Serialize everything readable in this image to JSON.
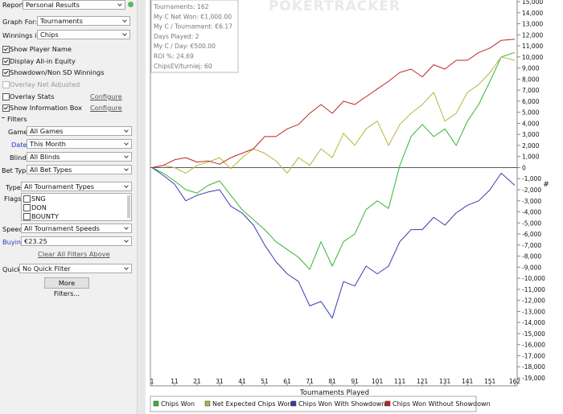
{
  "panel": {
    "report": {
      "label": "Report:",
      "value": "Personal Results"
    },
    "graph_for": {
      "label": "Graph For:",
      "value": "Tournaments"
    },
    "winnings_in": {
      "label": "Winnings in:",
      "value": "Chips"
    },
    "checkboxes": [
      {
        "label": "Show Player Name",
        "checked": true
      },
      {
        "label": "Display All-in Equity",
        "checked": true
      },
      {
        "label": "Showdown/Non SD Winnings",
        "checked": true
      },
      {
        "label": "Overlay Net Adjusted",
        "checked": false
      },
      {
        "label": "Overlay Stats",
        "checked": false,
        "link": "Configure"
      },
      {
        "label": "Show Information Box",
        "checked": true,
        "link": "Configure"
      }
    ],
    "filters_title": "Filters",
    "game": {
      "label": "Game:",
      "value": "All Games"
    },
    "date": {
      "label": "Date:",
      "value": "This Month"
    },
    "blind": {
      "label": "Blind:",
      "value": "All Blinds"
    },
    "bet_type": {
      "label": "Bet Type:",
      "value": "All Bet Types"
    },
    "type": {
      "label": "Type:",
      "value": "All Tournament Types"
    },
    "flags": {
      "label": "Flags:",
      "items": [
        "SNG",
        "DON",
        "BOUNTY"
      ]
    },
    "speed": {
      "label": "Speed:",
      "value": "All Tournament Speeds"
    },
    "buyin": {
      "label": "Buyin:",
      "value": "€23.25"
    },
    "clear_link": "Clear All Filters Above",
    "quick": {
      "label": "Quick:",
      "value": "No Quick Filter"
    },
    "more_button": "More Filters..."
  },
  "chart_data": {
    "type": "line",
    "watermark": "POKERTRACKER",
    "info_box": [
      "Tournaments: 162",
      "My C Net Won: €1,000.00",
      "My C / Tournament: €6.17",
      "Days Played: 2",
      "My C / Day: €500.00",
      "ROI %: 24.69",
      "ChipsEV/turniej: 60"
    ],
    "x_label": "Tournaments Played",
    "y_label": "#",
    "x": [
      1,
      6,
      11,
      16,
      21,
      26,
      31,
      36,
      41,
      46,
      51,
      56,
      61,
      66,
      71,
      76,
      81,
      86,
      91,
      96,
      101,
      106,
      111,
      116,
      121,
      126,
      131,
      136,
      141,
      146,
      151,
      156,
      162
    ],
    "series": [
      {
        "name": "Chips Won",
        "color": "#33b533",
        "values": [
          0,
          -500,
          -1200,
          -2000,
          -2300,
          -1600,
          -1200,
          -2500,
          -3800,
          -4700,
          -5600,
          -6700,
          -7400,
          -8100,
          -9200,
          -6700,
          -8900,
          -6700,
          -6000,
          -3800,
          -3000,
          -3700,
          200,
          2800,
          3900,
          2800,
          3500,
          2000,
          4200,
          5700,
          7800,
          10000,
          10400
        ]
      },
      {
        "name": "Net Expected Chips Won",
        "color": "#b5b53a",
        "values": [
          0,
          200,
          0,
          -500,
          200,
          500,
          900,
          -100,
          900,
          1700,
          1300,
          600,
          -500,
          900,
          200,
          1700,
          900,
          3100,
          2000,
          3500,
          4200,
          2000,
          3900,
          4900,
          5700,
          6800,
          4200,
          4900,
          6800,
          7500,
          8600,
          10000,
          9700
        ]
      },
      {
        "name": "Chips Won With Showdown",
        "color": "#3a3aaf",
        "values": [
          0,
          -700,
          -1500,
          -3000,
          -2500,
          -2200,
          -2000,
          -3500,
          -4100,
          -5200,
          -7000,
          -8500,
          -9600,
          -10300,
          -12500,
          -12100,
          -13600,
          -10300,
          -10700,
          -8900,
          -9600,
          -8900,
          -6700,
          -5600,
          -5600,
          -4500,
          -5200,
          -4100,
          -3400,
          -3000,
          -2000,
          -500,
          -1600
        ]
      },
      {
        "name": "Chips Won Without Showdown",
        "color": "#c02525",
        "values": [
          0,
          200,
          700,
          900,
          500,
          600,
          300,
          900,
          1300,
          1700,
          2800,
          2800,
          3500,
          3900,
          4900,
          5700,
          4900,
          6000,
          5700,
          6400,
          7100,
          7800,
          8600,
          8900,
          8200,
          9300,
          8900,
          9700,
          9700,
          10400,
          10800,
          11500,
          11600
        ]
      }
    ],
    "xlim": [
      1,
      162
    ],
    "xticks": [
      1,
      11,
      21,
      31,
      41,
      51,
      61,
      71,
      81,
      91,
      101,
      111,
      121,
      131,
      141,
      151,
      162
    ],
    "ylim": [
      -19000,
      15000
    ],
    "yticks": [
      {
        "value": 15000,
        "label": "15,000"
      },
      {
        "value": 14000,
        "label": "14,000"
      },
      {
        "value": 13000,
        "label": "13,000"
      },
      {
        "value": 12000,
        "label": "12,000"
      },
      {
        "value": 11000,
        "label": "11,000"
      },
      {
        "value": 10000,
        "label": "10,000"
      },
      {
        "value": 9000,
        "label": "9,000"
      },
      {
        "value": 8000,
        "label": "8,000"
      },
      {
        "value": 7000,
        "label": "7,000"
      },
      {
        "value": 6000,
        "label": "6,000"
      },
      {
        "value": 5000,
        "label": "5,000"
      },
      {
        "value": 4000,
        "label": "4,000"
      },
      {
        "value": 3000,
        "label": "3,000"
      },
      {
        "value": 2000,
        "label": "2,000"
      },
      {
        "value": 1000,
        "label": "1,000"
      },
      0,
      {
        "value": -1000,
        "label": "-1,000"
      },
      {
        "value": -2000,
        "label": "-2,000"
      },
      {
        "value": -3000,
        "label": "-3,000"
      },
      {
        "value": -4000,
        "label": "-4,000"
      },
      {
        "value": -5000,
        "label": "-5,000"
      },
      {
        "value": -6000,
        "label": "-6,000"
      },
      {
        "value": -7000,
        "label": "-7,000"
      },
      {
        "value": -8000,
        "label": "-8,000"
      },
      {
        "value": -9000,
        "label": "-9,000"
      },
      {
        "value": -10000,
        "label": "-10,000"
      },
      {
        "value": -11000,
        "label": "-11,000"
      },
      {
        "value": -12000,
        "label": "-12,000"
      },
      {
        "value": -13000,
        "label": "-13,000"
      },
      {
        "value": -14000,
        "label": "-14,000"
      },
      {
        "value": -15000,
        "label": "-15,000"
      },
      {
        "value": -16000,
        "label": "-16,000"
      },
      {
        "value": -17000,
        "label": "-17,000"
      },
      {
        "value": -18000,
        "label": "-18,000"
      },
      {
        "value": -19000,
        "label": "-19,000"
      }
    ],
    "grid": false,
    "legend": "bottom"
  }
}
